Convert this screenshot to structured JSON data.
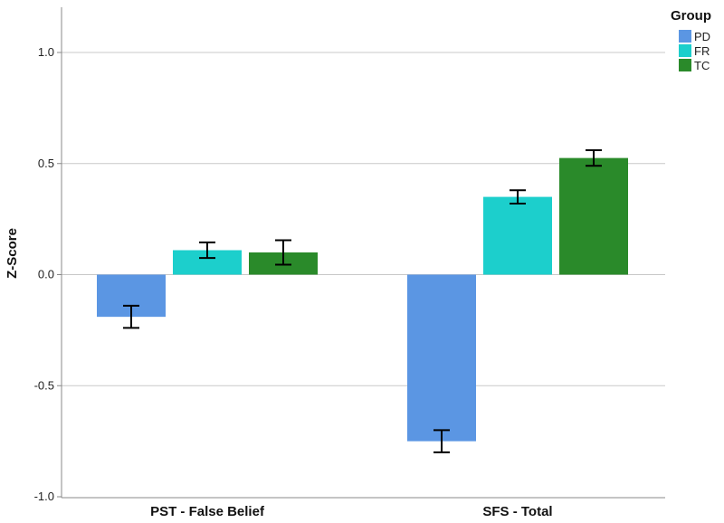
{
  "chart_data": {
    "type": "bar",
    "categories": [
      "PST - False Belief",
      "SFS - Total"
    ],
    "series": [
      {
        "name": "PD",
        "color": "#5b96e3",
        "values": [
          -0.19,
          -0.75
        ],
        "error": [
          0.05,
          0.05
        ]
      },
      {
        "name": "FR",
        "color": "#1ccfcc",
        "values": [
          0.11,
          0.35
        ],
        "error": [
          0.035,
          0.03
        ]
      },
      {
        "name": "TC",
        "color": "#2a8a2a",
        "values": [
          0.1,
          0.525
        ],
        "error": [
          0.055,
          0.035
        ]
      }
    ],
    "ylabel": "Z-Score",
    "xlabel": "",
    "ylim": [
      -1.0,
      1.0
    ],
    "yticks": [
      -1.0,
      -0.5,
      0.0,
      0.5,
      1.0
    ],
    "ytick_labels": [
      "-1.0",
      "-0.5",
      "0.0",
      "0.5",
      "1.0"
    ],
    "grid": true,
    "legend": {
      "title": "Group",
      "position": "top-right"
    }
  }
}
